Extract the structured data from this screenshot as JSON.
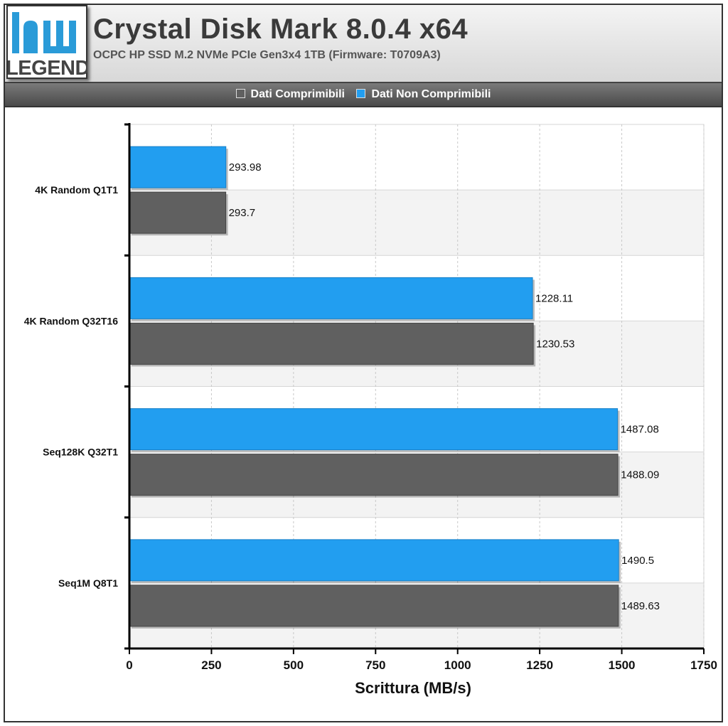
{
  "header": {
    "logo_top": "hw",
    "logo_bottom": "LEGEND",
    "title": "Crystal Disk Mark 8.0.4 x64",
    "subtitle": "OCPC HP SSD M.2 NVMe PCIe Gen3x4 1TB (Firmware: T0709A3)"
  },
  "legend": {
    "items": [
      {
        "label": "Dati Comprimibili",
        "color": "#606060"
      },
      {
        "label": "Dati Non Comprimibili",
        "color": "#229ef0"
      }
    ]
  },
  "chart_data": {
    "type": "bar",
    "orientation": "horizontal",
    "title": "Crystal Disk Mark 8.0.4 x64",
    "xlabel": "Scrittura (MB/s)",
    "ylabel": "",
    "xlim": [
      0,
      1750
    ],
    "xticks": [
      0,
      250,
      500,
      750,
      1000,
      1250,
      1500,
      1750
    ],
    "grid": "vertical-dashed",
    "legend_position": "top",
    "categories": [
      "4K Random Q1T1",
      "4K Random Q32T16",
      "Seq128K Q32T1",
      "Seq1M Q8T1"
    ],
    "series": [
      {
        "name": "Dati Non Comprimibili",
        "color": "#229ef0",
        "values": [
          293.98,
          1228.11,
          1487.08,
          1490.5
        ],
        "labels": [
          "293.98",
          "1228.11",
          "1487.08",
          "1490.5"
        ]
      },
      {
        "name": "Dati Comprimibili",
        "color": "#606060",
        "values": [
          293.7,
          1230.53,
          1488.09,
          1489.63
        ],
        "labels": [
          "293.7",
          "1230.53",
          "1488.09",
          "1489.63"
        ]
      }
    ]
  }
}
